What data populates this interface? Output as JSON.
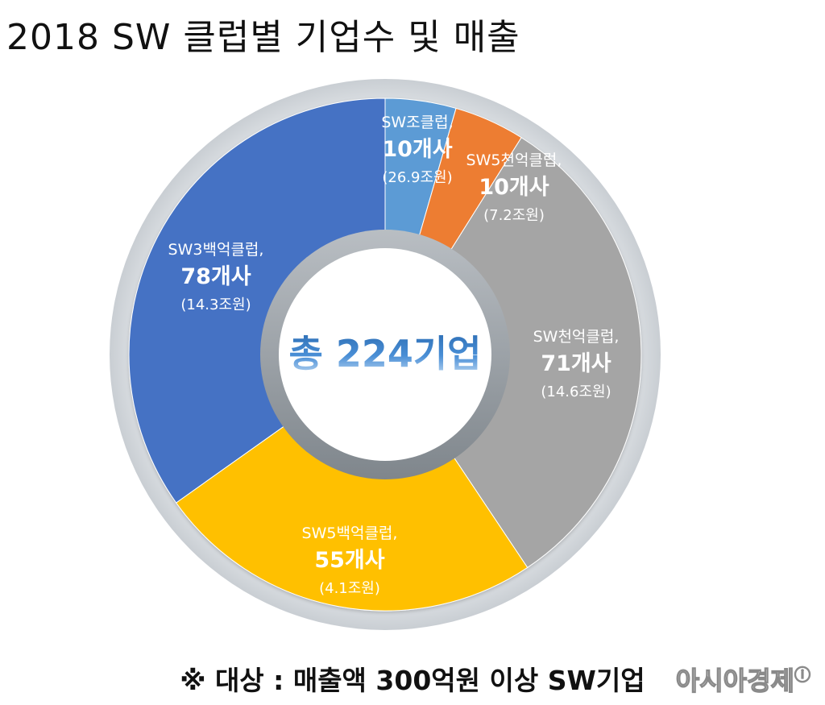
{
  "title": "2018 SW 클럽별 기업수 및 매출",
  "chart_data": {
    "type": "pie",
    "variant": "donut",
    "center_label": "총 224기업",
    "slices": [
      {
        "name": "SW조클럽,",
        "count": 10,
        "count_label": "10개사",
        "revenue_label": "(26.9조원)",
        "color": "#5b9bd5"
      },
      {
        "name": "SW5천억클럽,",
        "count": 10,
        "count_label": "10개사",
        "revenue_label": "(7.2조원)",
        "color": "#ed7d31"
      },
      {
        "name": "SW천억클럽,",
        "count": 71,
        "count_label": "71개사",
        "revenue_label": "(14.6조원)",
        "color": "#a5a5a5"
      },
      {
        "name": "SW5백억클럽,",
        "count": 55,
        "count_label": "55개사",
        "revenue_label": "(4.1조원)",
        "color": "#ffc000"
      },
      {
        "name": "SW3백억클럽,",
        "count": 78,
        "count_label": "78개사",
        "revenue_label": "(14.3조원)",
        "color": "#4472c4"
      }
    ]
  },
  "footnote": "※ 대상 : 매출액 300억원 이상 SW기업",
  "watermark": "아시아경제",
  "watermark_mark": "ⓘ"
}
